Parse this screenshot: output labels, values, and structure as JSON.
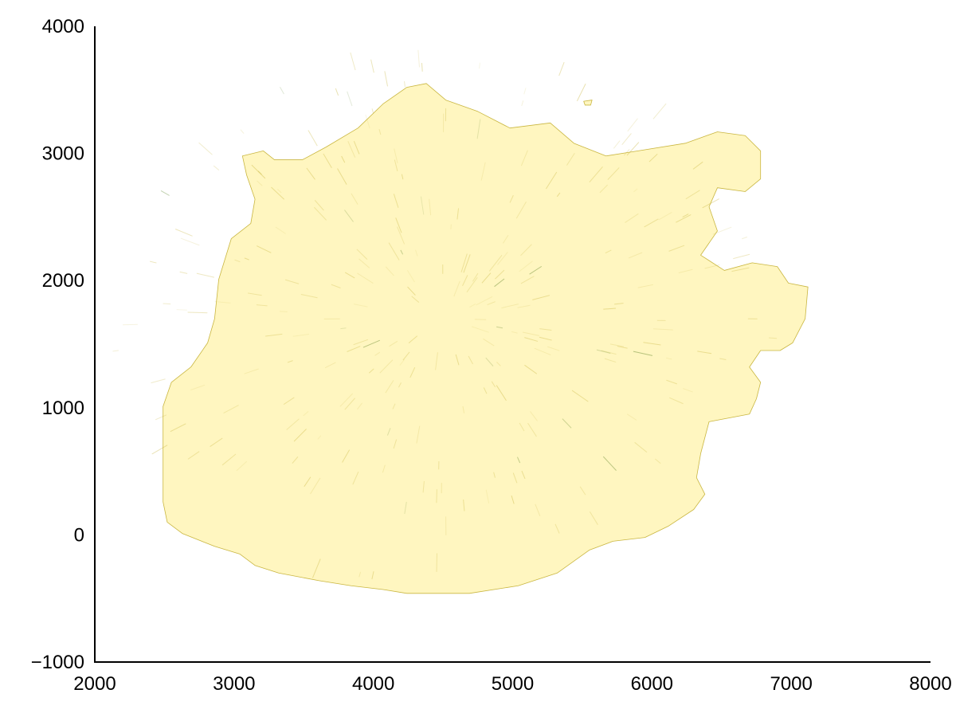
{
  "chart_data": {
    "type": "heatmap",
    "title": "",
    "xlabel": "",
    "ylabel": "",
    "xlim": [
      2000,
      8000
    ],
    "ylim": [
      -1000,
      4000
    ],
    "xticks": [
      "2000",
      "3000",
      "4000",
      "5000",
      "6000",
      "7000",
      "8000"
    ],
    "yticks": [
      "−1000",
      "0",
      "1000",
      "2000",
      "3000",
      "4000"
    ],
    "xtick_values": [
      2000,
      3000,
      4000,
      5000,
      6000,
      7000,
      8000
    ],
    "ytick_values": [
      -1000,
      0,
      1000,
      2000,
      3000,
      4000
    ],
    "grid": false,
    "colors": {
      "fill": "#fff6c0",
      "detail": "#c9b640",
      "dark_detail": "#4f7a1a",
      "axis": "#000000"
    },
    "region_outline": [
      [
        4240,
        3520
      ],
      [
        4380,
        3550
      ],
      [
        4520,
        3420
      ],
      [
        4750,
        3330
      ],
      [
        4980,
        3200
      ],
      [
        5270,
        3240
      ],
      [
        5440,
        3080
      ],
      [
        5670,
        2980
      ],
      [
        5900,
        3020
      ],
      [
        6240,
        3080
      ],
      [
        6470,
        3170
      ],
      [
        6670,
        3140
      ],
      [
        6780,
        3020
      ],
      [
        6780,
        2800
      ],
      [
        6670,
        2700
      ],
      [
        6470,
        2730
      ],
      [
        6410,
        2580
      ],
      [
        6470,
        2390
      ],
      [
        6350,
        2200
      ],
      [
        6520,
        2080
      ],
      [
        6720,
        2140
      ],
      [
        6900,
        2110
      ],
      [
        6980,
        1980
      ],
      [
        7120,
        1950
      ],
      [
        7100,
        1700
      ],
      [
        7010,
        1510
      ],
      [
        6920,
        1450
      ],
      [
        6780,
        1450
      ],
      [
        6700,
        1320
      ],
      [
        6780,
        1200
      ],
      [
        6750,
        1070
      ],
      [
        6700,
        950
      ],
      [
        6410,
        890
      ],
      [
        6350,
        640
      ],
      [
        6320,
        450
      ],
      [
        6380,
        320
      ],
      [
        6300,
        200
      ],
      [
        6120,
        70
      ],
      [
        5950,
        -20
      ],
      [
        5720,
        -50
      ],
      [
        5550,
        -120
      ],
      [
        5320,
        -300
      ],
      [
        5040,
        -400
      ],
      [
        4690,
        -460
      ],
      [
        4470,
        -460
      ],
      [
        4240,
        -460
      ],
      [
        4070,
        -430
      ],
      [
        3840,
        -400
      ],
      [
        3610,
        -360
      ],
      [
        3320,
        -300
      ],
      [
        3150,
        -240
      ],
      [
        3040,
        -150
      ],
      [
        2860,
        -90
      ],
      [
        2630,
        10
      ],
      [
        2520,
        100
      ],
      [
        2490,
        260
      ],
      [
        2490,
        450
      ],
      [
        2490,
        700
      ],
      [
        2490,
        1010
      ],
      [
        2550,
        1200
      ],
      [
        2690,
        1320
      ],
      [
        2810,
        1510
      ],
      [
        2860,
        1700
      ],
      [
        2890,
        2010
      ],
      [
        2980,
        2330
      ],
      [
        3120,
        2450
      ],
      [
        3150,
        2640
      ],
      [
        3090,
        2830
      ],
      [
        3060,
        2980
      ],
      [
        3210,
        3020
      ],
      [
        3290,
        2950
      ],
      [
        3490,
        2950
      ],
      [
        3660,
        3050
      ],
      [
        3890,
        3200
      ],
      [
        4070,
        3390
      ]
    ],
    "islet": [
      [
        5510,
        3410
      ],
      [
        5570,
        3420
      ],
      [
        5560,
        3380
      ],
      [
        5520,
        3380
      ]
    ]
  }
}
